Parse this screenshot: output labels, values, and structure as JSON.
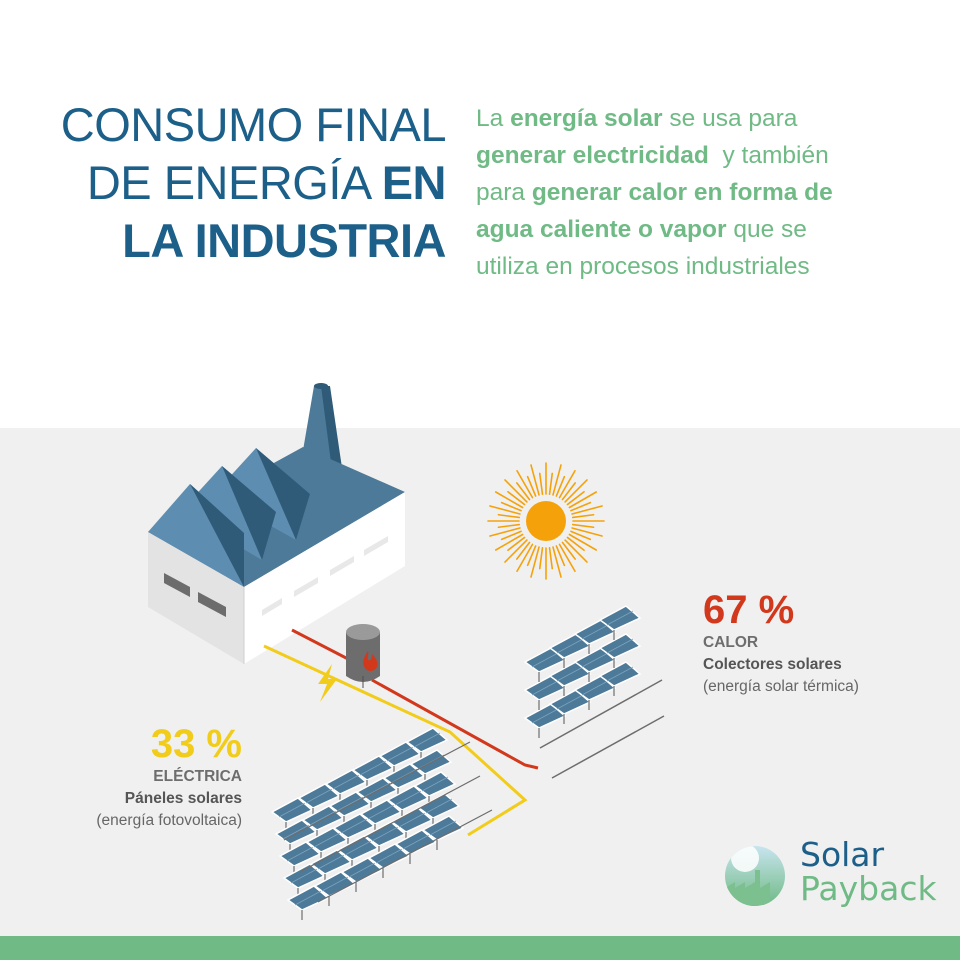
{
  "title": {
    "line1": "CONSUMO FINAL",
    "line2_light": "DE ENERGÍA ",
    "line2_bold": "EN",
    "line3": "LA INDUSTRIA"
  },
  "intro": {
    "l1_a": "La ",
    "l1_b": "energía solar",
    "l1_c": " se usa para",
    "l2_a": "generar electricidad",
    "l2_b": "  y también",
    "l3_a": "para ",
    "l3_b": "generar calor en forma de",
    "l4_a": "agua caliente o vapor",
    "l4_b": " que se",
    "l5": "utiliza en procesos industriales"
  },
  "stats": {
    "calor": {
      "percent": "67 %",
      "type": "CALOR",
      "technology": "Colectores solares",
      "note": "(energía solar térmica)"
    },
    "electrica": {
      "percent": "33 %",
      "type": "ELÉCTRICA",
      "technology": "Páneles solares",
      "note": "(energía fotovoltaica)"
    }
  },
  "brand": {
    "word1": "Solar",
    "word2": "Payback"
  },
  "icons": [
    "factory-illustration",
    "sun-icon",
    "water-tank-icon",
    "flame-icon",
    "lightning-bolt-icon",
    "pv-panel-array",
    "solar-collector-array",
    "solar-payback-logo-icon"
  ],
  "colors": {
    "title_blue": "#1c5f89",
    "intro_green": "#6fba85",
    "heat_red": "#d2381c",
    "electric_yellow": "#f2cc1a",
    "sun_orange": "#f5a20a",
    "panel_blue": "#4d7a98",
    "background_grey": "#f0f0f0",
    "footer_green": "#6fba85"
  }
}
